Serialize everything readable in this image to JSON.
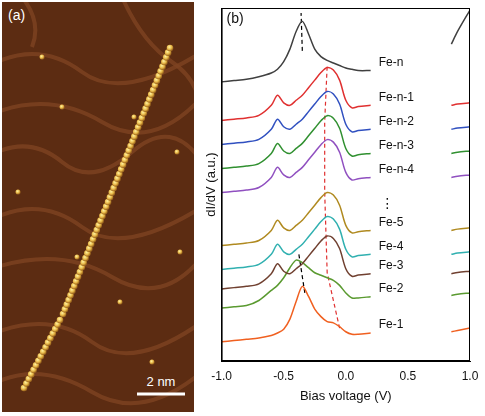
{
  "image_panel": {
    "label": "(a)",
    "scale_bar": "2 nm"
  },
  "chart_data": {
    "type": "line",
    "panel_label": "(b)",
    "x_label": "Bias voltage (V)",
    "y_label": "dI/dV (a.u.)",
    "xlim": [
      -1,
      1
    ],
    "xticks": [
      {
        "value": -1,
        "label": "-1.0"
      },
      {
        "value": -0.5,
        "label": "-0.5"
      },
      {
        "value": 0,
        "label": "0.0"
      },
      {
        "value": 0.5,
        "label": "0.5"
      },
      {
        "value": 1,
        "label": "1.0"
      }
    ],
    "ylim": [
      0,
      14
    ],
    "tick_labels": "x",
    "grid": false,
    "x": [
      -1.0,
      -0.9,
      -0.8,
      -0.7,
      -0.6,
      -0.55,
      -0.5,
      -0.45,
      -0.4,
      -0.35,
      -0.3,
      -0.25,
      -0.2,
      -0.15,
      -0.1,
      -0.05,
      0.0,
      0.05,
      0.1,
      0.2,
      0.3,
      0.85,
      0.9,
      1.0
    ],
    "series": [
      {
        "name": "Fe-n",
        "color": "#404040",
        "values": [
          11.07,
          11.12,
          11.17,
          11.27,
          11.42,
          11.57,
          11.87,
          12.37,
          13.07,
          13.47,
          12.97,
          12.37,
          12.07,
          11.92,
          11.82,
          11.72,
          11.62,
          11.57,
          11.52,
          11.52,
          null,
          12.57,
          13.07,
          13.92
        ]
      },
      {
        "name": "Fe-n-1",
        "color": "#e03030",
        "values": [
          9.54,
          9.59,
          9.64,
          9.74,
          10.14,
          10.54,
          10.24,
          10.14,
          10.34,
          10.54,
          10.84,
          11.14,
          11.44,
          11.64,
          11.54,
          11.14,
          10.34,
          10.04,
          10.09,
          10.14,
          null,
          10.14,
          10.19,
          10.24
        ]
      },
      {
        "name": "Fe-n-2",
        "color": "#3050c0",
        "values": [
          8.59,
          8.64,
          8.69,
          8.79,
          9.19,
          9.59,
          9.29,
          9.19,
          9.39,
          9.59,
          9.89,
          10.19,
          10.49,
          10.69,
          10.59,
          10.19,
          9.39,
          9.09,
          9.14,
          9.19,
          null,
          9.19,
          9.24,
          9.29
        ]
      },
      {
        "name": "Fe-n-3",
        "color": "#309030",
        "values": [
          7.63,
          7.68,
          7.73,
          7.83,
          8.23,
          8.63,
          8.33,
          8.23,
          8.43,
          8.63,
          8.93,
          9.23,
          9.53,
          9.73,
          9.63,
          9.23,
          8.43,
          8.13,
          8.18,
          8.23,
          null,
          8.23,
          8.28,
          8.33
        ]
      },
      {
        "name": "Fe-n-4",
        "color": "#9050c0",
        "values": [
          6.68,
          6.73,
          6.78,
          6.88,
          7.28,
          7.68,
          7.38,
          7.28,
          7.48,
          7.68,
          7.98,
          8.28,
          8.58,
          8.78,
          8.68,
          8.28,
          7.48,
          7.18,
          7.23,
          7.28,
          null,
          7.28,
          7.33,
          7.38
        ]
      },
      {
        "name": "Fe-5",
        "color": "#b08a20",
        "values": [
          4.58,
          4.63,
          4.68,
          4.78,
          5.18,
          5.58,
          5.28,
          5.18,
          5.38,
          5.58,
          5.88,
          6.18,
          6.48,
          6.68,
          6.58,
          6.18,
          5.38,
          5.08,
          5.13,
          5.18,
          null,
          5.18,
          5.23,
          5.28
        ]
      },
      {
        "name": "Fe-4",
        "color": "#30b0b0",
        "values": [
          3.63,
          3.68,
          3.73,
          3.83,
          4.23,
          4.63,
          4.33,
          4.23,
          4.43,
          4.63,
          4.93,
          5.23,
          5.53,
          5.73,
          5.63,
          5.23,
          4.43,
          4.13,
          4.18,
          4.23,
          null,
          4.23,
          4.28,
          4.33
        ]
      },
      {
        "name": "Fe-3",
        "color": "#704030",
        "values": [
          2.86,
          2.91,
          2.96,
          3.06,
          3.46,
          3.86,
          3.56,
          3.46,
          3.66,
          3.86,
          4.16,
          4.46,
          4.76,
          4.96,
          4.86,
          4.46,
          3.66,
          3.36,
          3.41,
          3.46,
          null,
          3.46,
          3.51,
          3.56
        ]
      },
      {
        "name": "Fe-2",
        "color": "#5a9a30",
        "values": [
          2.1,
          2.15,
          2.2,
          2.4,
          2.8,
          3.0,
          3.3,
          3.7,
          4.0,
          3.9,
          3.7,
          3.5,
          3.4,
          3.3,
          3.2,
          3.0,
          2.7,
          2.5,
          2.5,
          2.55,
          null,
          2.6,
          2.65,
          2.7
        ]
      },
      {
        "name": "Fe-1",
        "color": "#f06020",
        "values": [
          0.76,
          0.81,
          0.86,
          0.91,
          1.01,
          1.11,
          1.26,
          1.66,
          2.36,
          2.96,
          2.56,
          2.06,
          1.76,
          1.56,
          1.51,
          1.36,
          1.16,
          1.06,
          1.06,
          1.11,
          null,
          1.16,
          1.21,
          1.31
        ]
      }
    ],
    "guides": [
      {
        "color": "#000000",
        "line_style": "dashed",
        "x": [
          -0.35,
          -0.36
        ],
        "y": [
          12.3,
          13.8
        ]
      },
      {
        "color": "#000000",
        "line_style": "dashed",
        "x": [
          -0.33,
          -0.38
        ],
        "y": [
          2.7,
          4.3
        ]
      },
      {
        "color": "#e03030",
        "line_style": "dashed",
        "x": [
          -0.05,
          -0.15,
          -0.17,
          -0.17,
          -0.15
        ],
        "y": [
          1.3,
          3.5,
          6.7,
          9.5,
          11.7
        ]
      }
    ],
    "annotations": [
      {
        "text": "⋮",
        "x": 0.28,
        "y": 6.2
      }
    ]
  }
}
